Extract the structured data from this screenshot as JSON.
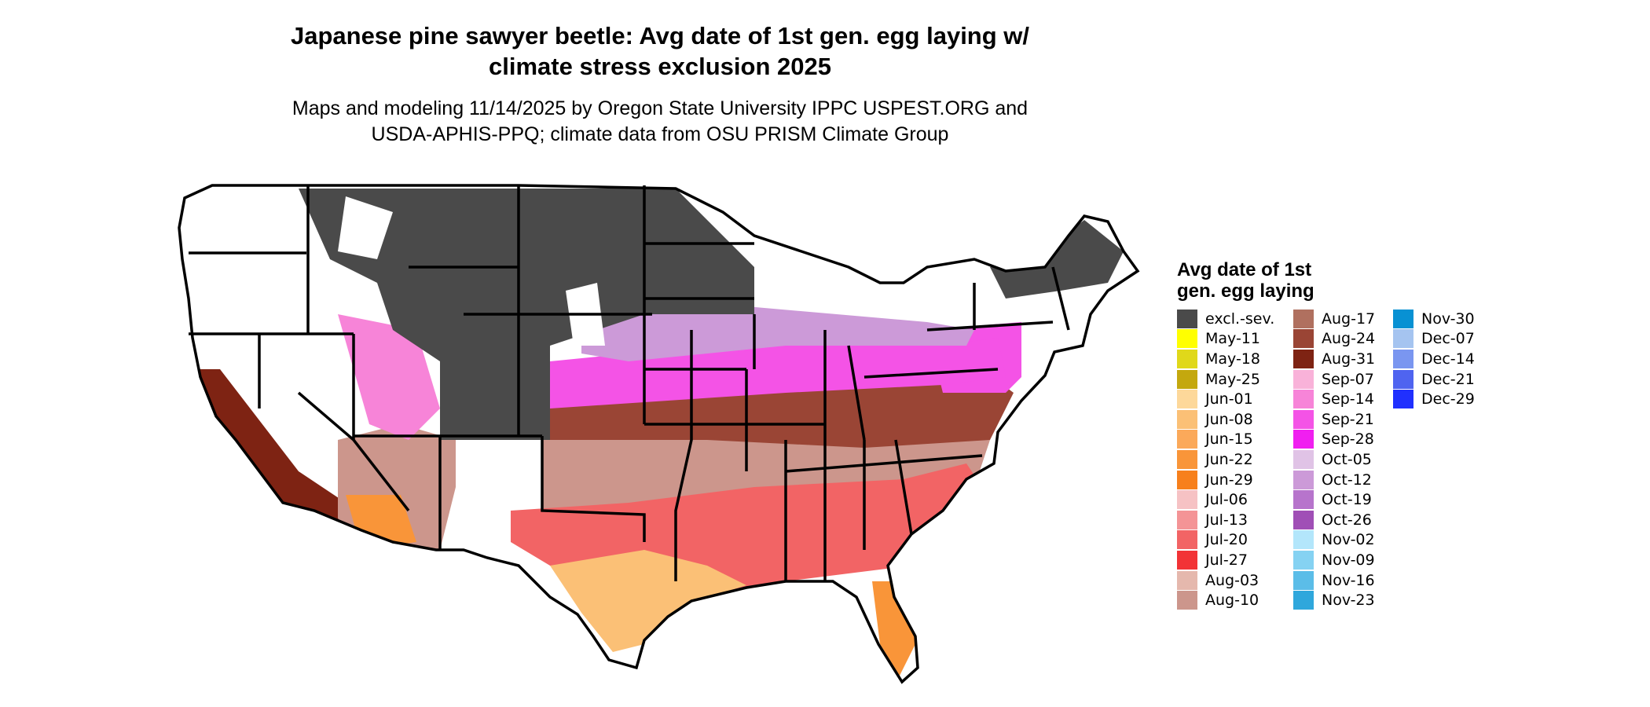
{
  "title_line1": "Japanese pine sawyer beetle: Avg date of 1st gen. egg laying w/",
  "title_line2": "climate stress exclusion 2025",
  "subtitle_line1": "Maps and modeling 11/14/2025 by Oregon State University IPPC USPEST.ORG and",
  "subtitle_line2": "USDA-APHIS-PPQ; climate data from OSU PRISM Climate Group",
  "legend": {
    "title_line1": "Avg date of 1st",
    "title_line2": "gen. egg laying",
    "columns": [
      [
        {
          "label": "excl.-sev.",
          "color": "#4a4a4a"
        },
        {
          "label": "May-11",
          "color": "#ffff00"
        },
        {
          "label": "May-18",
          "color": "#e0d81a"
        },
        {
          "label": "May-25",
          "color": "#c4a80e"
        },
        {
          "label": "Jun-01",
          "color": "#fdd89a"
        },
        {
          "label": "Jun-08",
          "color": "#fbc076"
        },
        {
          "label": "Jun-15",
          "color": "#fba95a"
        },
        {
          "label": "Jun-22",
          "color": "#f99539"
        },
        {
          "label": "Jun-29",
          "color": "#f7801c"
        },
        {
          "label": "Jul-06",
          "color": "#f6c2c4"
        },
        {
          "label": "Jul-13",
          "color": "#f49496"
        },
        {
          "label": "Jul-20",
          "color": "#f26465"
        },
        {
          "label": "Jul-27",
          "color": "#f23336"
        },
        {
          "label": "Aug-03",
          "color": "#e5b8ad"
        },
        {
          "label": "Aug-10",
          "color": "#cc968c"
        }
      ],
      [
        {
          "label": "Aug-17",
          "color": "#b0705f"
        },
        {
          "label": "Aug-24",
          "color": "#9a4535"
        },
        {
          "label": "Aug-31",
          "color": "#7e2313"
        },
        {
          "label": "Sep-07",
          "color": "#f9b2d9"
        },
        {
          "label": "Sep-14",
          "color": "#f784d8"
        },
        {
          "label": "Sep-21",
          "color": "#f453e6"
        },
        {
          "label": "Sep-28",
          "color": "#f01ff0"
        },
        {
          "label": "Oct-05",
          "color": "#e0c3e6"
        },
        {
          "label": "Oct-12",
          "color": "#cc9ad8"
        },
        {
          "label": "Oct-19",
          "color": "#b774cc"
        },
        {
          "label": "Oct-26",
          "color": "#a04fb6"
        },
        {
          "label": "Nov-02",
          "color": "#b3e6fb"
        },
        {
          "label": "Nov-09",
          "color": "#85d2f2"
        },
        {
          "label": "Nov-16",
          "color": "#5bbde8"
        },
        {
          "label": "Nov-23",
          "color": "#2fa7dc"
        }
      ],
      [
        {
          "label": "Nov-30",
          "color": "#0891d3"
        },
        {
          "label": "Dec-07",
          "color": "#a5c4f0"
        },
        {
          "label": "Dec-14",
          "color": "#7a96f0"
        },
        {
          "label": "Dec-21",
          "color": "#4f64f0"
        },
        {
          "label": "Dec-29",
          "color": "#2030fe"
        }
      ]
    ]
  }
}
